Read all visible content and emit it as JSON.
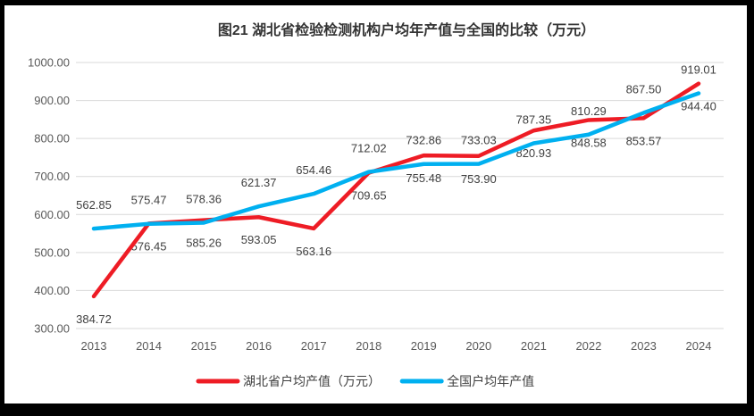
{
  "chart_data": {
    "type": "line",
    "title": "图21 湖北省检验检测机构户均年产值与全国的比较（万元）",
    "categories": [
      "2013",
      "2014",
      "2015",
      "2016",
      "2017",
      "2018",
      "2019",
      "2020",
      "2021",
      "2022",
      "2023",
      "2024"
    ],
    "series": [
      {
        "name": "湖北省户均产值（万元）",
        "color": "#EE1C25",
        "label_position": "below",
        "values": [
          384.72,
          576.45,
          585.26,
          593.05,
          563.16,
          709.65,
          755.48,
          753.9,
          820.93,
          848.58,
          853.57,
          944.4
        ]
      },
      {
        "name": "全国户均年产值",
        "color": "#00B0F0",
        "label_position": "above",
        "values": [
          562.85,
          575.47,
          578.36,
          621.37,
          654.46,
          712.02,
          732.86,
          733.03,
          787.35,
          810.29,
          867.5,
          919.01
        ]
      }
    ],
    "ylim": [
      300,
      1000
    ],
    "ytick_step": 100,
    "ytick_labels": [
      "300.00",
      "400.00",
      "500.00",
      "600.00",
      "700.00",
      "800.00",
      "900.00",
      "1000.00"
    ],
    "value_label_decimals": 2,
    "grid": true,
    "legend_position": "bottom"
  },
  "colors": {
    "background": "#FFFFFF",
    "frame_border": "#000000",
    "gridline": "#D9D9D9",
    "axis_text": "#595959",
    "data_label_text": "#404040",
    "legend_text": "#404040",
    "title_text": "#333333"
  }
}
